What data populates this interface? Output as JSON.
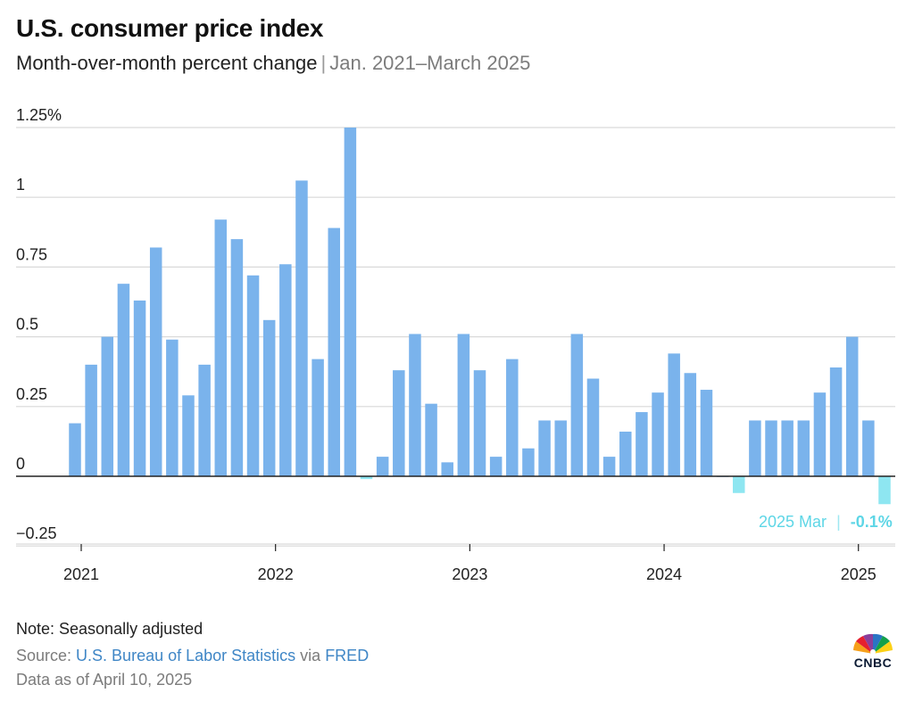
{
  "header": {
    "title": "U.S. consumer price index",
    "subtitle": "Month-over-month percent change",
    "separator": "|",
    "date_range": "Jan. 2021–March 2025"
  },
  "colors": {
    "bar": "#7ab3ec",
    "negative_bar": "#8ee6f1",
    "highlight": "#5ed6e6",
    "grid": "#d9d9d9",
    "zero_line": "#222222"
  },
  "chart_data": {
    "type": "bar",
    "x": [
      "2021-01",
      "2021-02",
      "2021-03",
      "2021-04",
      "2021-05",
      "2021-06",
      "2021-07",
      "2021-08",
      "2021-09",
      "2021-10",
      "2021-11",
      "2021-12",
      "2022-01",
      "2022-02",
      "2022-03",
      "2022-04",
      "2022-05",
      "2022-06",
      "2022-07",
      "2022-08",
      "2022-09",
      "2022-10",
      "2022-11",
      "2022-12",
      "2023-01",
      "2023-02",
      "2023-03",
      "2023-04",
      "2023-05",
      "2023-06",
      "2023-07",
      "2023-08",
      "2023-09",
      "2023-10",
      "2023-11",
      "2023-12",
      "2024-01",
      "2024-02",
      "2024-03",
      "2024-04",
      "2024-05",
      "2024-06",
      "2024-07",
      "2024-08",
      "2024-09",
      "2024-10",
      "2024-11",
      "2024-12",
      "2025-01",
      "2025-02",
      "2025-03"
    ],
    "values": [
      0.19,
      0.4,
      0.5,
      0.69,
      0.63,
      0.82,
      0.49,
      0.29,
      0.4,
      0.92,
      0.85,
      0.72,
      0.56,
      0.76,
      1.06,
      0.42,
      0.89,
      1.25,
      -0.01,
      0.07,
      0.38,
      0.51,
      0.26,
      0.05,
      0.51,
      0.38,
      0.07,
      0.42,
      0.1,
      0.2,
      0.2,
      0.51,
      0.35,
      0.07,
      0.16,
      0.23,
      0.3,
      0.44,
      0.37,
      0.31,
      0.0,
      -0.06,
      0.2,
      0.2,
      0.2,
      0.2,
      0.3,
      0.39,
      0.5,
      0.2,
      -0.1
    ],
    "x_tick_labels": [
      "2021",
      "2022",
      "2023",
      "2024",
      "2025"
    ],
    "y_tick_labels": [
      "1.25%",
      "1",
      "0.75",
      "0.5",
      "0.25",
      "0",
      "−0.25"
    ],
    "y_ticks": [
      1.25,
      1,
      0.75,
      0.5,
      0.25,
      0,
      -0.25
    ],
    "ylim": [
      -0.25,
      1.25
    ],
    "grid": true,
    "annotation": {
      "label": "2025 Mar",
      "separator": "|",
      "value_text": "-0.1%"
    },
    "title": "U.S. consumer price index",
    "subtitle": "Month-over-month percent change"
  },
  "footer": {
    "note": "Note: Seasonally adjusted",
    "source_prefix": "Source: ",
    "source_link1": "U.S. Bureau of Labor Statistics",
    "source_mid": " via ",
    "source_link2": "FRED",
    "data_as_of": "Data as of April 10, 2025"
  },
  "logo": {
    "text": "CNBC",
    "icon": "peacock-icon"
  }
}
